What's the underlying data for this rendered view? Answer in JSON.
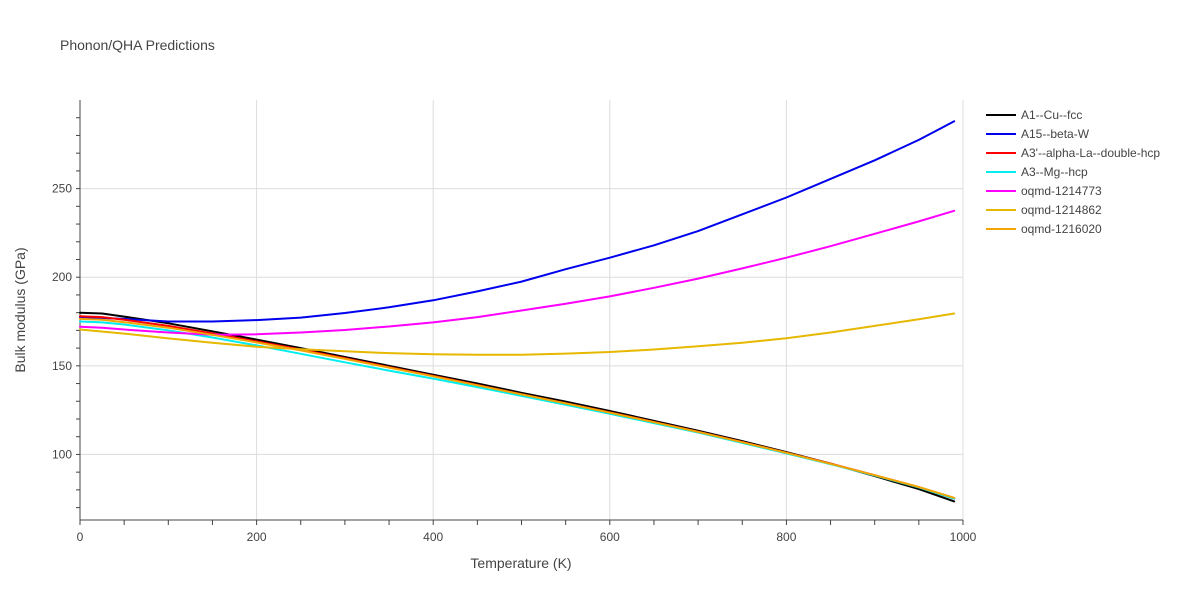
{
  "chart_data": {
    "type": "line",
    "title": "Phonon/QHA Predictions",
    "xlabel": "Temperature (K)",
    "ylabel": "Bulk modulus (GPa)",
    "xlim": [
      0,
      1000
    ],
    "ylim": [
      63,
      300
    ],
    "xticks": [
      0,
      200,
      400,
      600,
      800,
      1000
    ],
    "yticks": [
      100,
      150,
      200,
      250
    ],
    "grid": true,
    "legend_position": "top-right",
    "series": [
      {
        "name": "A1--Cu--fcc",
        "color": "#000000",
        "x": [
          0,
          25,
          50,
          100,
          150,
          200,
          250,
          300,
          350,
          400,
          450,
          500,
          550,
          600,
          650,
          700,
          750,
          800,
          850,
          900,
          950,
          990
        ],
        "y": [
          180,
          179.5,
          177.8,
          174,
          169.5,
          164.8,
          160,
          155,
          150,
          145,
          140,
          134.8,
          129.8,
          124.5,
          119,
          113.4,
          107.5,
          101.3,
          94.8,
          87.8,
          80.5,
          73.5
        ]
      },
      {
        "name": "A15--beta-W",
        "color": "#0000ee",
        "x": [
          0,
          50,
          100,
          150,
          200,
          250,
          300,
          350,
          400,
          450,
          500,
          550,
          600,
          650,
          700,
          750,
          800,
          850,
          900,
          950,
          990
        ],
        "y": [
          177.5,
          176.5,
          175,
          175,
          175.8,
          177.2,
          179.8,
          183,
          187,
          192,
          197.5,
          204.5,
          211,
          218,
          226,
          235.5,
          245,
          255.5,
          266,
          277.5,
          288
        ]
      },
      {
        "name": "A3'--alpha-La--double-hcp",
        "color": "#ff0000",
        "x": [
          0,
          25,
          50,
          100,
          150,
          200,
          250,
          300,
          350,
          400,
          450,
          500,
          550,
          600,
          650,
          700,
          750,
          800,
          850,
          900,
          950,
          990
        ],
        "y": [
          178,
          177.5,
          176,
          172.5,
          168.3,
          163.8,
          159.2,
          154.3,
          149.3,
          144.3,
          139.2,
          134,
          128.9,
          123.8,
          118.3,
          112.8,
          107,
          101,
          94.8,
          88.3,
          81.5,
          75
        ]
      },
      {
        "name": "A3--Mg--hcp",
        "color": "#00eeee",
        "x": [
          0,
          25,
          50,
          100,
          150,
          200,
          250,
          300,
          350,
          400,
          450,
          500,
          550,
          600,
          650,
          700,
          750,
          800,
          850,
          900,
          950,
          990
        ],
        "y": [
          175,
          174.5,
          173.3,
          170,
          166,
          161.5,
          156.8,
          152,
          147.3,
          142.8,
          138,
          133,
          128,
          122.9,
          117.7,
          112.4,
          106.5,
          100.6,
          94.5,
          88.1,
          81.4,
          75
        ]
      },
      {
        "name": "oqmd-1214773",
        "color": "#ff00ff",
        "x": [
          0,
          25,
          50,
          100,
          150,
          200,
          250,
          300,
          350,
          400,
          450,
          500,
          550,
          600,
          650,
          700,
          750,
          800,
          850,
          900,
          950,
          990
        ],
        "y": [
          172,
          171.5,
          170.5,
          168.8,
          167.5,
          167.8,
          168.8,
          170.2,
          172.2,
          174.5,
          177.5,
          181.2,
          185,
          189.2,
          194,
          199.2,
          205,
          211,
          217.5,
          224.5,
          231.5,
          237.5
        ]
      },
      {
        "name": "oqmd-1214862",
        "color": "#e6b800",
        "x": [
          0,
          50,
          100,
          150,
          200,
          250,
          300,
          350,
          400,
          450,
          500,
          550,
          600,
          650,
          700,
          750,
          800,
          850,
          900,
          950,
          990
        ],
        "y": [
          170.5,
          168.2,
          165.5,
          163,
          160.8,
          159.3,
          158.2,
          157.2,
          156.5,
          156.2,
          156.3,
          156.9,
          157.8,
          159.2,
          161,
          163,
          165.6,
          168.8,
          172.5,
          176.3,
          179.5
        ]
      },
      {
        "name": "oqmd-1216020",
        "color": "#f2a500",
        "x": [
          0,
          25,
          50,
          100,
          150,
          200,
          250,
          300,
          350,
          400,
          450,
          500,
          550,
          600,
          650,
          700,
          750,
          800,
          850,
          900,
          950,
          990
        ],
        "y": [
          176.5,
          176,
          174.6,
          171.5,
          167.5,
          163.2,
          158.7,
          153.9,
          149,
          144.1,
          139,
          133.9,
          128.8,
          123.6,
          118.2,
          112.7,
          106.9,
          100.9,
          94.7,
          88.3,
          81.6,
          75.5
        ]
      }
    ]
  }
}
